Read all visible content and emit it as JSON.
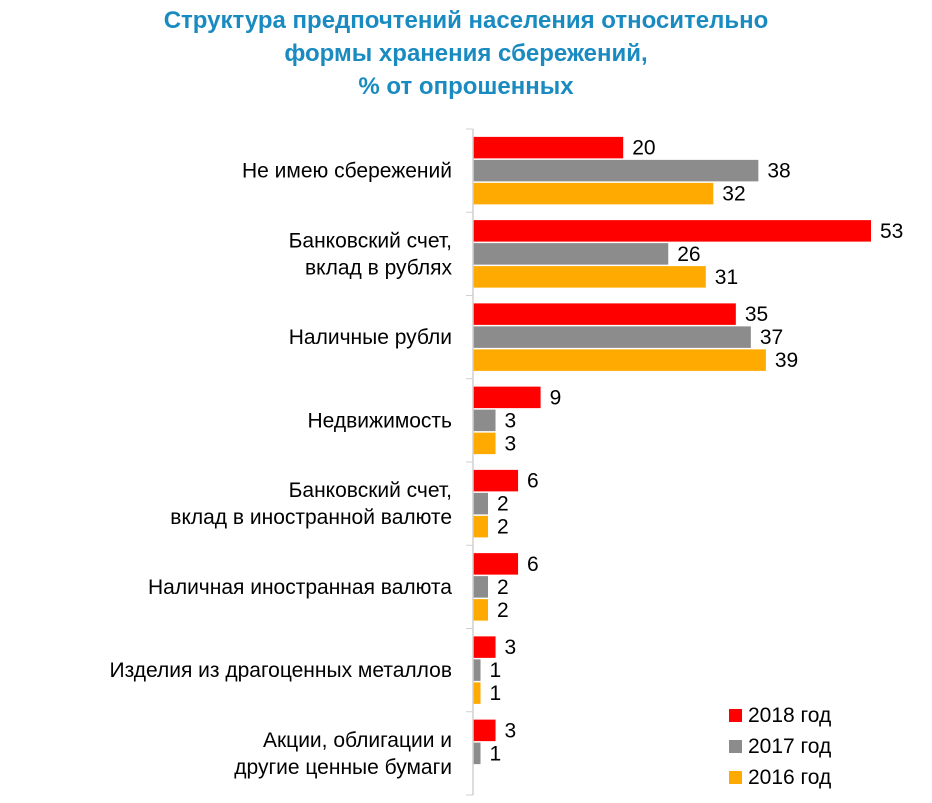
{
  "chart_data": {
    "type": "bar",
    "orientation": "horizontal",
    "title_lines": [
      "Структура предпочтений населения относительно",
      "формы хранения сбережений,",
      "% от опрошенных"
    ],
    "categories": [
      [
        "Не имею сбережений"
      ],
      [
        "Банковский счет,",
        "вклад в рублях"
      ],
      [
        "Наличные рубли"
      ],
      [
        "Недвижимость"
      ],
      [
        "Банковский счет,",
        "вклад в иностранной валюте"
      ],
      [
        "Наличная иностранная валюта"
      ],
      [
        "Изделия из драгоценных металлов"
      ],
      [
        "Акции, облигации и",
        "другие ценные бумаги"
      ]
    ],
    "series": [
      {
        "name": "2018 год",
        "color": "#ff0000",
        "values": [
          20,
          53,
          35,
          9,
          6,
          6,
          3,
          3
        ]
      },
      {
        "name": "2017 год",
        "color": "#8c8c8c",
        "values": [
          38,
          26,
          37,
          3,
          2,
          2,
          1,
          1
        ]
      },
      {
        "name": "2016 год",
        "color": "#ffaa00",
        "values": [
          32,
          31,
          39,
          3,
          2,
          2,
          1,
          null
        ]
      }
    ],
    "xlim": [
      0,
      53
    ],
    "grid": false,
    "legend_position": "bottom-right"
  }
}
